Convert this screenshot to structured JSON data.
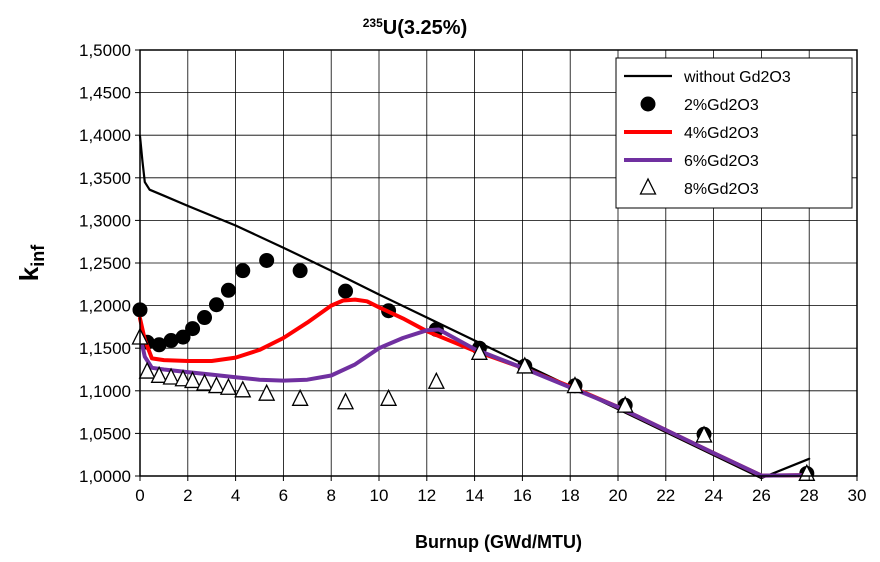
{
  "chart_data": {
    "type": "line",
    "title_sup": "235",
    "title_main": "U(3.25%)",
    "xlabel": "Burnup (GWd/MTU)",
    "ylabel_main": "k",
    "ylabel_sub": "inf",
    "xlim": [
      0,
      30
    ],
    "ylim": [
      1.0,
      1.5
    ],
    "x_ticks": [
      "0",
      "2",
      "4",
      "6",
      "8",
      "10",
      "12",
      "14",
      "16",
      "18",
      "20",
      "22",
      "24",
      "26",
      "28",
      "30"
    ],
    "y_ticks": [
      "1,0000",
      "1,0500",
      "1,1000",
      "1,1500",
      "1,2000",
      "1,2500",
      "1,3000",
      "1,3500",
      "1,4000",
      "1,4500",
      "1,5000"
    ],
    "grid": true,
    "legend_position": "top-right",
    "series": [
      {
        "name": "without Gd2O3",
        "style": "line",
        "color": "#000000",
        "x": [
          0,
          0.1,
          0.2,
          0.4,
          1,
          2,
          4,
          6,
          8,
          10,
          12,
          14,
          16,
          18,
          20,
          22,
          24,
          26,
          28
        ],
        "y": [
          1.399,
          1.37,
          1.345,
          1.336,
          1.329,
          1.317,
          1.294,
          1.268,
          1.241,
          1.213,
          1.186,
          1.159,
          1.132,
          1.105,
          1.0785,
          1.0515,
          1.0245,
          0.9975,
          1.0202
        ]
      },
      {
        "name": "2%Gd2O3",
        "style": "markers",
        "marker": "circle",
        "color": "#000000",
        "x": [
          0,
          0.3,
          0.8,
          1.3,
          1.8,
          2.2,
          2.7,
          3.2,
          3.7,
          4.3,
          5.3,
          6.7,
          8.6,
          10.4,
          12.4,
          14.2,
          16.1,
          18.2,
          20.3,
          23.6,
          27.9
        ],
        "y": [
          1.195,
          1.157,
          1.154,
          1.159,
          1.163,
          1.173,
          1.186,
          1.201,
          1.218,
          1.241,
          1.253,
          1.241,
          1.217,
          1.194,
          1.172,
          1.15,
          1.129,
          1.106,
          1.083,
          1.049,
          1.003
        ]
      },
      {
        "name": "4%Gd2O3",
        "style": "line",
        "color": "#ff0000",
        "x": [
          0,
          0.2,
          0.5,
          1,
          2,
          3,
          4,
          5,
          6,
          7,
          8,
          8.5,
          9,
          9.5,
          10,
          11,
          12,
          14,
          16,
          18,
          20,
          22,
          24,
          26,
          28
        ],
        "y": [
          1.185,
          1.16,
          1.138,
          1.136,
          1.135,
          1.135,
          1.139,
          1.148,
          1.162,
          1.18,
          1.2,
          1.206,
          1.207,
          1.205,
          1.198,
          1.185,
          1.17,
          1.147,
          1.127,
          1.105,
          1.081,
          1.054,
          1.027,
          1.0005,
          1.001
        ]
      },
      {
        "name": "6%Gd2O3",
        "style": "line",
        "color": "#7030a0",
        "x": [
          0,
          0.2,
          0.5,
          1,
          2,
          3,
          4,
          5,
          6,
          7,
          8,
          9,
          10,
          11,
          12,
          12.5,
          14,
          16,
          18,
          20,
          22,
          24,
          26,
          28
        ],
        "y": [
          1.165,
          1.14,
          1.127,
          1.125,
          1.122,
          1.119,
          1.116,
          1.113,
          1.112,
          1.113,
          1.118,
          1.131,
          1.15,
          1.162,
          1.171,
          1.172,
          1.149,
          1.127,
          1.104,
          1.081,
          1.054,
          1.027,
          1.0005,
          1.001
        ]
      },
      {
        "name": "8%Gd2O3",
        "style": "markers",
        "marker": "triangle",
        "color": "#000000",
        "x": [
          0,
          0.3,
          0.8,
          1.3,
          1.8,
          2.2,
          2.7,
          3.2,
          3.7,
          4.3,
          5.3,
          6.7,
          8.6,
          10.4,
          12.4,
          14.2,
          16.1,
          18.2,
          20.3,
          23.6,
          27.9
        ],
        "y": [
          1.162,
          1.122,
          1.117,
          1.115,
          1.113,
          1.111,
          1.108,
          1.105,
          1.103,
          1.1,
          1.096,
          1.09,
          1.086,
          1.09,
          1.11,
          1.144,
          1.128,
          1.105,
          1.082,
          1.047,
          1.002
        ]
      }
    ]
  }
}
